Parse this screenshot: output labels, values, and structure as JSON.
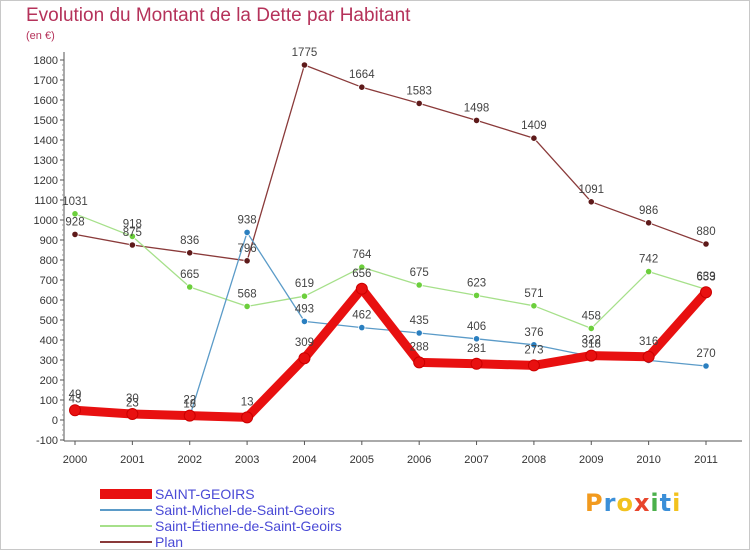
{
  "header": {
    "title": "Evolution du Montant de la Dette par Habitant",
    "unit": "(en €)"
  },
  "chart_data": {
    "type": "line",
    "title": "Evolution du Montant de la Dette par Habitant",
    "subtitle": "(en €)",
    "xlabel": "",
    "ylabel": "",
    "x": [
      "2000",
      "2001",
      "2002",
      "2003",
      "2004",
      "2005",
      "2006",
      "2007",
      "2008",
      "2009",
      "2010",
      "2011"
    ],
    "ylim": [
      -100,
      1800
    ],
    "yticks": [
      -100,
      0,
      100,
      200,
      300,
      400,
      500,
      600,
      700,
      800,
      900,
      1000,
      1100,
      1200,
      1300,
      1400,
      1500,
      1600,
      1700,
      1800
    ],
    "grid": false,
    "legend_position": "bottom-left",
    "series": [
      {
        "name": "SAINT-GEOIRS",
        "color": "#e81010",
        "marker_color": "#e81010",
        "values": [
          49,
          30,
          22,
          13,
          309,
          656,
          288,
          281,
          273,
          322,
          316,
          639
        ]
      },
      {
        "name": "Saint-Michel-de-Saint-Geoirs",
        "color": "#5b9bc8",
        "marker_color": "#2a7fc0",
        "values": [
          43,
          23,
          18,
          938,
          493,
          462,
          435,
          406,
          376,
          318,
          298,
          270
        ]
      },
      {
        "name": "Saint-Étienne-de-Saint-Geoirs",
        "color": "#a6e08a",
        "marker_color": "#6ccf3c",
        "values": [
          1031,
          918,
          665,
          568,
          619,
          764,
          675,
          623,
          571,
          458,
          742,
          653
        ]
      },
      {
        "name": "Plan",
        "color": "#8a3a3a",
        "marker_color": "#5e1a1a",
        "values": [
          928,
          875,
          836,
          796,
          1775,
          1664,
          1583,
          1498,
          1409,
          1091,
          986,
          880
        ]
      }
    ],
    "data_labels": [
      {
        "series": 0,
        "labels": [
          "49",
          "30",
          "22",
          "13",
          "309",
          "656",
          "288",
          "281",
          "273",
          "322",
          "316",
          "639"
        ]
      },
      {
        "series": 1,
        "labels": [
          "43",
          "23",
          "18",
          "938",
          "493",
          "462",
          "435",
          "406",
          "376",
          "318",
          "",
          "270"
        ]
      },
      {
        "series": 2,
        "labels": [
          "1031",
          "918",
          "665",
          "568",
          "619",
          "764",
          "675",
          "623",
          "571",
          "458",
          "742",
          "653"
        ]
      },
      {
        "series": 3,
        "labels": [
          "928",
          "875",
          "836",
          "796",
          "1775",
          "1664",
          "1583",
          "1498",
          "1409",
          "1091",
          "986",
          "880"
        ]
      }
    ]
  },
  "legend": {
    "items": [
      {
        "label": "SAINT-GEOIRS",
        "color": "#e81010"
      },
      {
        "label": "Saint-Michel-de-Saint-Geoirs",
        "color": "#5b9bc8"
      },
      {
        "label": "Saint-Étienne-de-Saint-Geoirs",
        "color": "#a6e08a"
      },
      {
        "label": "Plan",
        "color": "#8a3a3a"
      }
    ]
  },
  "logo": {
    "letters": [
      "P",
      "r",
      "o",
      "x",
      "i",
      "t",
      "i"
    ],
    "colors": [
      "#f29a1e",
      "#3b8fd8",
      "#f2c21e",
      "#e8452c",
      "#4bb04b",
      "#3b8fd8",
      "#f2c21e"
    ]
  }
}
